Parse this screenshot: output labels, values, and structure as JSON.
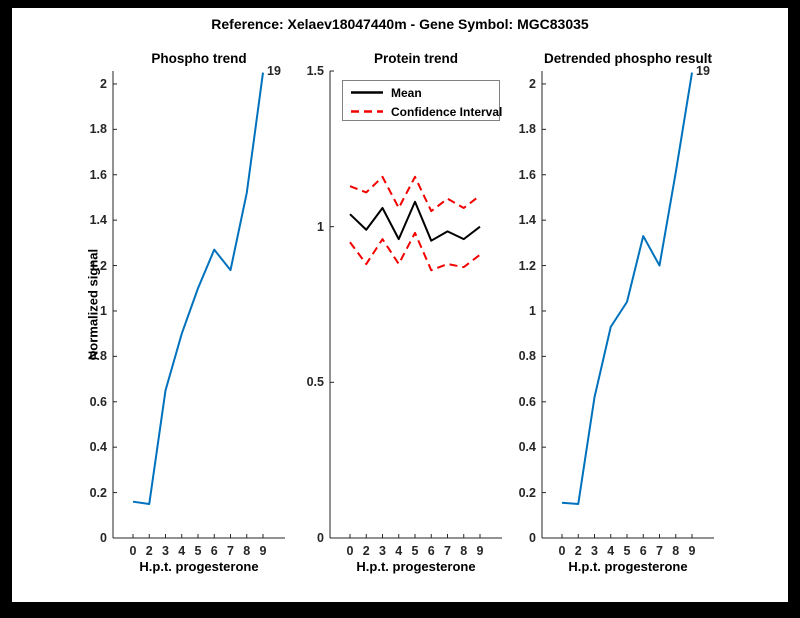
{
  "figure_title": "Reference:  Xelaev18047440m - Gene Symbol:  MGC83035",
  "colors": {
    "background_frame": "#000000",
    "figure_background": "#ffffff",
    "phospho_line_blue": "#0072BD",
    "mean_line_black": "#000000",
    "confidence_interval_red": "#F20000",
    "axis_gray": "#262626"
  },
  "chart_data": [
    {
      "type": "line",
      "title": "Phospho trend",
      "xlabel": "H.p.t. progesterone",
      "ylabel": "Normalized signal",
      "x_tick_labels": [
        "0",
        "2",
        "3",
        "4",
        "5",
        "6",
        "7",
        "8",
        "9"
      ],
      "ylim": [
        0,
        2.057
      ],
      "ytick_values": [
        0,
        0.2,
        0.4,
        0.6,
        0.8,
        1,
        1.2,
        1.4,
        1.6,
        1.8,
        2
      ],
      "ytick_labels": [
        "0",
        "0.2",
        "0.4",
        "0.6",
        "0.8",
        "1",
        "1.2",
        "1.4",
        "1.6",
        "1.8",
        "2"
      ],
      "grid": false,
      "series": [
        {
          "name": "phospho-signal",
          "style": "solid",
          "color": "#0072BD",
          "values": [
            0.16,
            0.15,
            0.65,
            0.9,
            1.1,
            1.27,
            1.18,
            1.52,
            2.05
          ]
        }
      ],
      "annotation": {
        "text": "19",
        "at_x_index": 8,
        "at_value": 2.05
      }
    },
    {
      "type": "line",
      "title": "Protein trend",
      "xlabel": "H.p.t. progesterone",
      "ylabel": "",
      "x_tick_labels": [
        "0",
        "2",
        "3",
        "4",
        "5",
        "6",
        "7",
        "8",
        "9"
      ],
      "ylim": [
        0,
        1.5
      ],
      "ytick_values": [
        0,
        0.5,
        1,
        1.5
      ],
      "ytick_labels": [
        "0",
        "0.5",
        "1",
        "1.5"
      ],
      "grid": false,
      "series": [
        {
          "name": "confidence-upper",
          "style": "dashed",
          "color": "#F20000",
          "values": [
            1.13,
            1.11,
            1.16,
            1.06,
            1.16,
            1.05,
            1.09,
            1.06,
            1.1
          ]
        },
        {
          "name": "confidence-lower",
          "style": "dashed",
          "color": "#F20000",
          "values": [
            0.95,
            0.88,
            0.96,
            0.88,
            0.98,
            0.86,
            0.88,
            0.87,
            0.91
          ]
        },
        {
          "name": "mean",
          "style": "solid",
          "color": "#000000",
          "values": [
            1.04,
            0.99,
            1.06,
            0.96,
            1.08,
            0.955,
            0.985,
            0.96,
            1.0
          ]
        }
      ],
      "legend": {
        "position": "top-left-inside",
        "entries": [
          {
            "label": "Mean",
            "style": "solid",
            "color": "#000000"
          },
          {
            "label": "Confidence Interval",
            "style": "dashed",
            "color": "#F20000"
          }
        ]
      }
    },
    {
      "type": "line",
      "title": "Detrended phospho result",
      "xlabel": "H.p.t. progesterone",
      "ylabel": "",
      "x_tick_labels": [
        "0",
        "2",
        "3",
        "4",
        "5",
        "6",
        "7",
        "8",
        "9"
      ],
      "ylim": [
        0,
        2.057
      ],
      "ytick_values": [
        0,
        0.2,
        0.4,
        0.6,
        0.8,
        1,
        1.2,
        1.4,
        1.6,
        1.8,
        2
      ],
      "ytick_labels": [
        "0",
        "0.2",
        "0.4",
        "0.6",
        "0.8",
        "1",
        "1.2",
        "1.4",
        "1.6",
        "1.8",
        "2"
      ],
      "grid": false,
      "series": [
        {
          "name": "detrended-phospho-signal",
          "style": "solid",
          "color": "#0072BD",
          "values": [
            0.155,
            0.15,
            0.62,
            0.93,
            1.04,
            1.33,
            1.2,
            1.61,
            2.05
          ]
        }
      ],
      "annotation": {
        "text": "19",
        "at_x_index": 8,
        "at_value": 2.05
      }
    }
  ]
}
